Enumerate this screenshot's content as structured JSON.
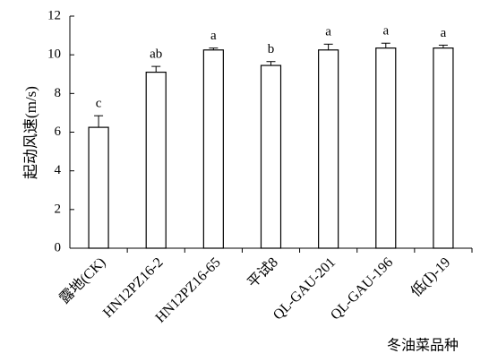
{
  "chart_data": {
    "type": "bar",
    "y_label": "起动风速(m/s)",
    "x_label": "冬油菜品种",
    "categories": [
      "露地(CK)",
      "HN12PZ16-2",
      "HN12PZ16-65",
      "平试8",
      "QL-GAU-201",
      "QL-GAU-196",
      "低(Ⅰ)-19"
    ],
    "values": [
      6.25,
      9.1,
      10.25,
      9.45,
      10.25,
      10.35,
      10.35
    ],
    "errors": [
      0.6,
      0.3,
      0.1,
      0.2,
      0.3,
      0.25,
      0.15
    ],
    "significance": [
      "c",
      "ab",
      "a",
      "b",
      "a",
      "a",
      "a"
    ],
    "color": "#ffffff",
    "ylim": [
      0,
      12
    ],
    "yticks": [
      0,
      2,
      4,
      6,
      8,
      10,
      12
    ],
    "grid": false
  }
}
